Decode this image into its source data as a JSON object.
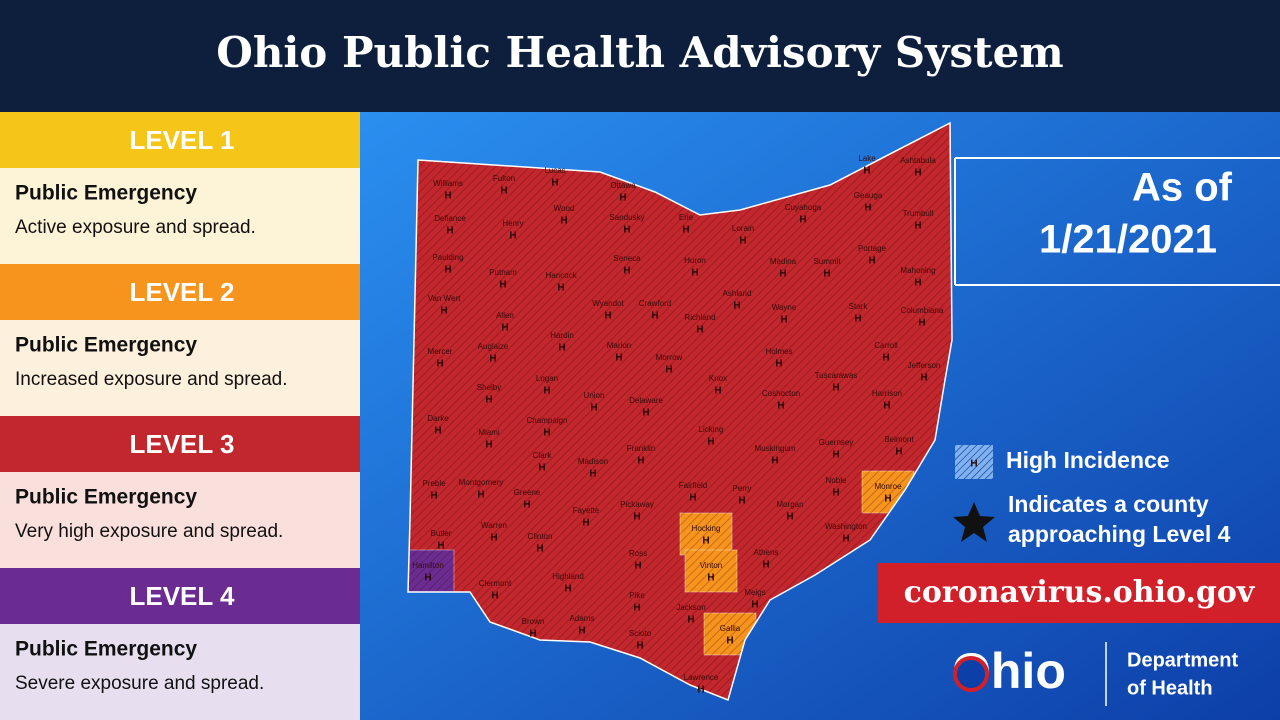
{
  "header": {
    "title": "Ohio Public Health Advisory System"
  },
  "levels": [
    {
      "label": "LEVEL 1",
      "color": "#f5c518",
      "panel_color": "#fdf3d7",
      "title": "Public Emergency",
      "description": "Active exposure and spread."
    },
    {
      "label": "LEVEL 2",
      "color": "#f7941d",
      "panel_color": "#fdf0dd",
      "title": "Public Emergency",
      "description": "Increased exposure and spread."
    },
    {
      "label": "LEVEL 3",
      "color": "#c1272d",
      "panel_color": "#f9e0dc",
      "title": "Public Emergency",
      "description": "Very high exposure and spread."
    },
    {
      "label": "LEVEL 4",
      "color": "#6b2c91",
      "panel_color": "#e7dff0",
      "title": "Public Emergency",
      "description": "Severe exposure and spread."
    }
  ],
  "map": {
    "as_of_label": "As of",
    "date": "1/21/2021",
    "incidence_marker": "H",
    "counties": [
      {
        "name": "Williams",
        "level": 3
      },
      {
        "name": "Fulton",
        "level": 3
      },
      {
        "name": "Lucas",
        "level": 3
      },
      {
        "name": "Ottawa",
        "level": 3
      },
      {
        "name": "Defiance",
        "level": 3
      },
      {
        "name": "Henry",
        "level": 3
      },
      {
        "name": "Wood",
        "level": 3
      },
      {
        "name": "Sandusky",
        "level": 3
      },
      {
        "name": "Erie",
        "level": 3
      },
      {
        "name": "Lorain",
        "level": 3
      },
      {
        "name": "Cuyahoga",
        "level": 3
      },
      {
        "name": "Lake",
        "level": 3
      },
      {
        "name": "Ashtabula",
        "level": 3
      },
      {
        "name": "Geauga",
        "level": 3
      },
      {
        "name": "Trumbull",
        "level": 3
      },
      {
        "name": "Paulding",
        "level": 3
      },
      {
        "name": "Putnam",
        "level": 3
      },
      {
        "name": "Hancock",
        "level": 3
      },
      {
        "name": "Seneca",
        "level": 3
      },
      {
        "name": "Huron",
        "level": 3
      },
      {
        "name": "Medina",
        "level": 3
      },
      {
        "name": "Summit",
        "level": 3
      },
      {
        "name": "Portage",
        "level": 3
      },
      {
        "name": "Mahoning",
        "level": 3
      },
      {
        "name": "Van Wert",
        "level": 3
      },
      {
        "name": "Allen",
        "level": 3
      },
      {
        "name": "Wyandot",
        "level": 3
      },
      {
        "name": "Crawford",
        "level": 3
      },
      {
        "name": "Ashland",
        "level": 3
      },
      {
        "name": "Wayne",
        "level": 3
      },
      {
        "name": "Stark",
        "level": 3
      },
      {
        "name": "Columbiana",
        "level": 3
      },
      {
        "name": "Richland",
        "level": 3
      },
      {
        "name": "Hardin",
        "level": 3
      },
      {
        "name": "Mercer",
        "level": 3
      },
      {
        "name": "Auglaize",
        "level": 3
      },
      {
        "name": "Marion",
        "level": 3
      },
      {
        "name": "Morrow",
        "level": 3
      },
      {
        "name": "Holmes",
        "level": 3
      },
      {
        "name": "Carroll",
        "level": 3
      },
      {
        "name": "Jefferson",
        "level": 3
      },
      {
        "name": "Tuscarawas",
        "level": 3
      },
      {
        "name": "Logan",
        "level": 3
      },
      {
        "name": "Shelby",
        "level": 3
      },
      {
        "name": "Union",
        "level": 3
      },
      {
        "name": "Delaware",
        "level": 3
      },
      {
        "name": "Knox",
        "level": 3
      },
      {
        "name": "Coshocton",
        "level": 3
      },
      {
        "name": "Harrison",
        "level": 3
      },
      {
        "name": "Darke",
        "level": 3
      },
      {
        "name": "Champaign",
        "level": 3
      },
      {
        "name": "Miami",
        "level": 3
      },
      {
        "name": "Licking",
        "level": 3
      },
      {
        "name": "Guernsey",
        "level": 3
      },
      {
        "name": "Belmont",
        "level": 3
      },
      {
        "name": "Clark",
        "level": 3
      },
      {
        "name": "Franklin",
        "level": 3
      },
      {
        "name": "Muskingum",
        "level": 3
      },
      {
        "name": "Madison",
        "level": 3
      },
      {
        "name": "Noble",
        "level": 3
      },
      {
        "name": "Monroe",
        "level": 2
      },
      {
        "name": "Preble",
        "level": 3
      },
      {
        "name": "Montgomery",
        "level": 3
      },
      {
        "name": "Greene",
        "level": 3
      },
      {
        "name": "Fayette",
        "level": 3
      },
      {
        "name": "Pickaway",
        "level": 3
      },
      {
        "name": "Fairfield",
        "level": 3
      },
      {
        "name": "Perry",
        "level": 3
      },
      {
        "name": "Morgan",
        "level": 3
      },
      {
        "name": "Washington",
        "level": 3
      },
      {
        "name": "Butler",
        "level": 3
      },
      {
        "name": "Warren",
        "level": 3
      },
      {
        "name": "Clinton",
        "level": 3
      },
      {
        "name": "Hocking",
        "level": 2
      },
      {
        "name": "Athens",
        "level": 3
      },
      {
        "name": "Ross",
        "level": 3
      },
      {
        "name": "Hamilton",
        "level": 4
      },
      {
        "name": "Vinton",
        "level": 2
      },
      {
        "name": "Clermont",
        "level": 3
      },
      {
        "name": "Highland",
        "level": 3
      },
      {
        "name": "Meigs",
        "level": 3
      },
      {
        "name": "Pike",
        "level": 3
      },
      {
        "name": "Jackson",
        "level": 3
      },
      {
        "name": "Gallia",
        "level": 2
      },
      {
        "name": "Brown",
        "level": 3
      },
      {
        "name": "Adams",
        "level": 3
      },
      {
        "name": "Scioto",
        "level": 3
      },
      {
        "name": "Lawrence",
        "level": 3
      }
    ]
  },
  "legend": {
    "high_incidence": "High Incidence",
    "approaching_level_4": [
      "Indicates a county",
      "approaching Level 4"
    ]
  },
  "url": "coronavirus.ohio.gov",
  "logo": {
    "wordmark": "Ohio",
    "department": [
      "Department",
      "of Health"
    ]
  }
}
